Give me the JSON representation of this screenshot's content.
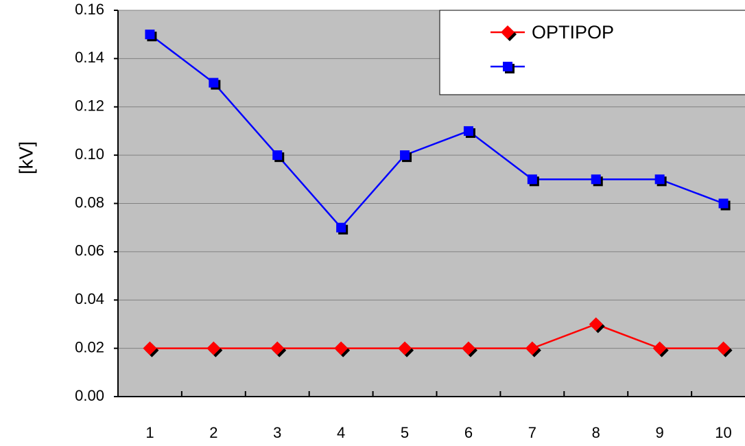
{
  "chart_data": {
    "type": "line",
    "y_label": "[kV]",
    "categories": [
      "1",
      "2",
      "3",
      "4",
      "5",
      "6",
      "7",
      "8",
      "9",
      "10"
    ],
    "series": [
      {
        "name": "OPTIPOP",
        "color": "#ff0000",
        "marker": "diamond",
        "values": [
          0.02,
          0.02,
          0.02,
          0.02,
          0.02,
          0.02,
          0.02,
          0.03,
          0.02,
          0.02
        ]
      },
      {
        "color": "#0000ff",
        "marker": "square",
        "values": [
          0.15,
          0.13,
          0.1,
          0.07,
          0.1,
          0.11,
          0.09,
          0.09,
          0.09,
          0.08
        ]
      }
    ],
    "ylim": [
      0,
      0.16
    ],
    "yticks": [
      {
        "value": 0,
        "label": "0.00"
      },
      0.02,
      0.04,
      0.06,
      0.08,
      {
        "value": 0.1,
        "label": "0.10"
      },
      0.12,
      0.14,
      0.16
    ],
    "grid": true,
    "legend": "top-right"
  }
}
